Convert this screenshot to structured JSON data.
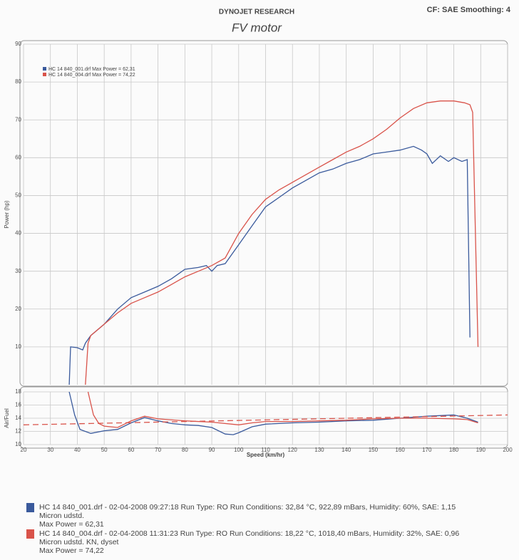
{
  "header": {
    "brand": "DYNOJET RESEARCH",
    "settings": "CF: SAE  Smoothing: 4"
  },
  "chart_data": [
    {
      "type": "line",
      "title": "FV motor",
      "y_label": "Power (hp)",
      "xlim": [
        20,
        200
      ],
      "xticks": [
        20,
        30,
        40,
        50,
        60,
        70,
        80,
        90,
        100,
        110,
        120,
        130,
        140,
        150,
        160,
        170,
        180,
        190,
        200
      ],
      "ylim": [
        0,
        90
      ],
      "yticks": [
        10,
        20,
        30,
        40,
        50,
        60,
        70,
        80,
        90
      ],
      "grid": true,
      "legend": "top-left",
      "series": [
        {
          "name": "HC 14 840_001.drf Max Power = 62,31",
          "color": "#3a5a9c",
          "x": [
            37,
            37.5,
            40,
            42,
            43,
            45,
            50,
            55,
            60,
            65,
            70,
            75,
            80,
            85,
            88,
            90,
            92,
            95,
            100,
            105,
            110,
            115,
            120,
            125,
            130,
            135,
            140,
            145,
            150,
            155,
            160,
            165,
            168,
            170,
            172,
            175,
            178,
            180,
            183,
            185,
            186
          ],
          "values": [
            0,
            10,
            9.8,
            9.2,
            11,
            13,
            16,
            20,
            23,
            24.5,
            26,
            28,
            30.5,
            31,
            31.5,
            30,
            31.5,
            32,
            37,
            42,
            47,
            49.5,
            52,
            54,
            56,
            57,
            58.5,
            59.5,
            61,
            61.5,
            62,
            63,
            62,
            61,
            58.5,
            60.5,
            59,
            60,
            59,
            59.5,
            12.5
          ]
        },
        {
          "name": "HC 14 840_004.drf Max Power = 74,22",
          "color": "#d9534a",
          "x": [
            43,
            44,
            45,
            50,
            55,
            60,
            65,
            70,
            75,
            80,
            85,
            90,
            95,
            100,
            105,
            110,
            115,
            120,
            125,
            130,
            135,
            140,
            145,
            150,
            155,
            160,
            165,
            170,
            175,
            180,
            184,
            186,
            187,
            189
          ],
          "values": [
            0,
            11,
            13,
            16,
            19,
            21.5,
            23,
            24.5,
            26.5,
            28.5,
            30,
            31.5,
            33.5,
            40,
            45,
            49,
            51.5,
            53.5,
            55.5,
            57.5,
            59.5,
            61.5,
            63,
            65,
            67.5,
            70.5,
            73,
            74.5,
            75,
            75,
            74.5,
            74,
            72,
            10
          ]
        }
      ]
    },
    {
      "type": "line",
      "y_label": "Air/Fuel",
      "x_label": "Speed (km/hr)",
      "xlim": [
        20,
        200
      ],
      "xticks": [
        20,
        30,
        40,
        50,
        60,
        70,
        80,
        90,
        100,
        110,
        120,
        130,
        140,
        150,
        160,
        170,
        180,
        190,
        200
      ],
      "ylim": [
        10,
        18
      ],
      "yticks": [
        10,
        12,
        14,
        16,
        18
      ],
      "grid": true,
      "series": [
        {
          "color": "#3a5a9c",
          "x": [
            37,
            39,
            41,
            45,
            50,
            55,
            60,
            65,
            70,
            75,
            80,
            85,
            90,
            95,
            98,
            100,
            105,
            110,
            120,
            130,
            140,
            150,
            160,
            170,
            180,
            185,
            189
          ],
          "values": [
            18,
            14.5,
            12.3,
            11.7,
            12.1,
            12.3,
            13.3,
            14.1,
            13.6,
            13.2,
            13,
            12.9,
            12.6,
            11.6,
            11.5,
            11.8,
            12.7,
            13.1,
            13.3,
            13.4,
            13.6,
            13.7,
            14,
            14.3,
            14.5,
            14,
            13.4
          ]
        },
        {
          "color": "#d9534a",
          "x": [
            44,
            46,
            48,
            50,
            55,
            60,
            65,
            70,
            80,
            90,
            100,
            105,
            110,
            120,
            130,
            140,
            150,
            160,
            170,
            180,
            185,
            189
          ],
          "values": [
            18,
            14.5,
            13.2,
            12.8,
            12.6,
            13.6,
            14.3,
            13.9,
            13.6,
            13.4,
            13,
            13.3,
            13.5,
            13.5,
            13.6,
            13.7,
            13.9,
            14,
            14,
            13.9,
            13.8,
            13.3
          ]
        },
        {
          "color": "#d9534a",
          "dashed": true,
          "x": [
            20,
            200
          ],
          "values": [
            13,
            14.5
          ]
        }
      ]
    }
  ],
  "runs": [
    {
      "color": "#3a5a9c",
      "lines": [
        "HC 14 840_001.drf - 02-04-2008 09:27:18  Run Type: RO  Run Conditions: 32,84 °C, 922,89 mBars,  Humidity:  60%, SAE: 1,15",
        "Micron udstd.",
        "Max Power = 62,31"
      ]
    },
    {
      "color": "#d9534a",
      "lines": [
        "HC 14 840_004.drf - 02-04-2008 11:31:23  Run Type: RO  Run Conditions: 18,22 °C, 1018,40 mBars,  Humidity:  32%, SAE: 0,96",
        "Micron udstd. KN, dyset",
        "Max Power = 74,22"
      ]
    }
  ]
}
